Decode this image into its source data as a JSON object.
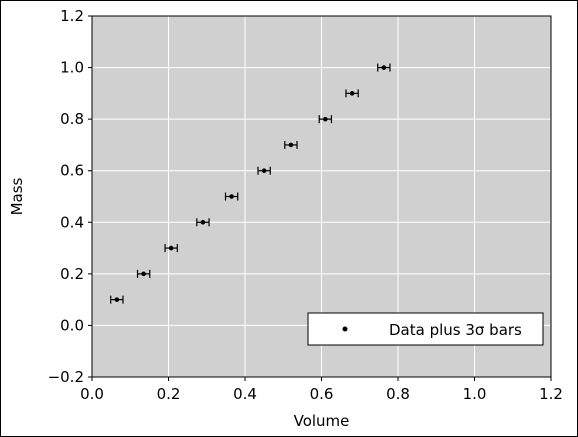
{
  "chart_data": {
    "type": "scatter",
    "xlabel": "Volume",
    "ylabel": "Mass",
    "xlim": [
      0.0,
      1.2
    ],
    "ylim": [
      -0.2,
      1.2
    ],
    "x_ticks": [
      "0.0",
      "0.2",
      "0.4",
      "0.6",
      "0.8",
      "1.0",
      "1.2"
    ],
    "y_ticks": [
      "−0.2",
      "0.0",
      "0.2",
      "0.4",
      "0.6",
      "0.8",
      "1.0",
      "1.2"
    ],
    "x_tick_values": [
      0.0,
      0.2,
      0.4,
      0.6,
      0.8,
      1.0,
      1.2
    ],
    "y_tick_values": [
      -0.2,
      0.0,
      0.2,
      0.4,
      0.6,
      0.8,
      1.0,
      1.2
    ],
    "grid": true,
    "legend_position": "bottom-right",
    "plot_background": "#d0d0d0",
    "grid_color": "#ffffff",
    "marker_color": "#000000",
    "series": [
      {
        "name": "Data plus 3σ bars",
        "x": [
          0.065,
          0.135,
          0.207,
          0.29,
          0.365,
          0.45,
          0.52,
          0.61,
          0.68,
          0.763
        ],
        "y": [
          0.1,
          0.2,
          0.3,
          0.4,
          0.5,
          0.6,
          0.7,
          0.8,
          0.9,
          1.0
        ],
        "xerr": [
          0.016,
          0.016,
          0.016,
          0.016,
          0.016,
          0.016,
          0.016,
          0.016,
          0.016,
          0.016
        ]
      }
    ]
  }
}
